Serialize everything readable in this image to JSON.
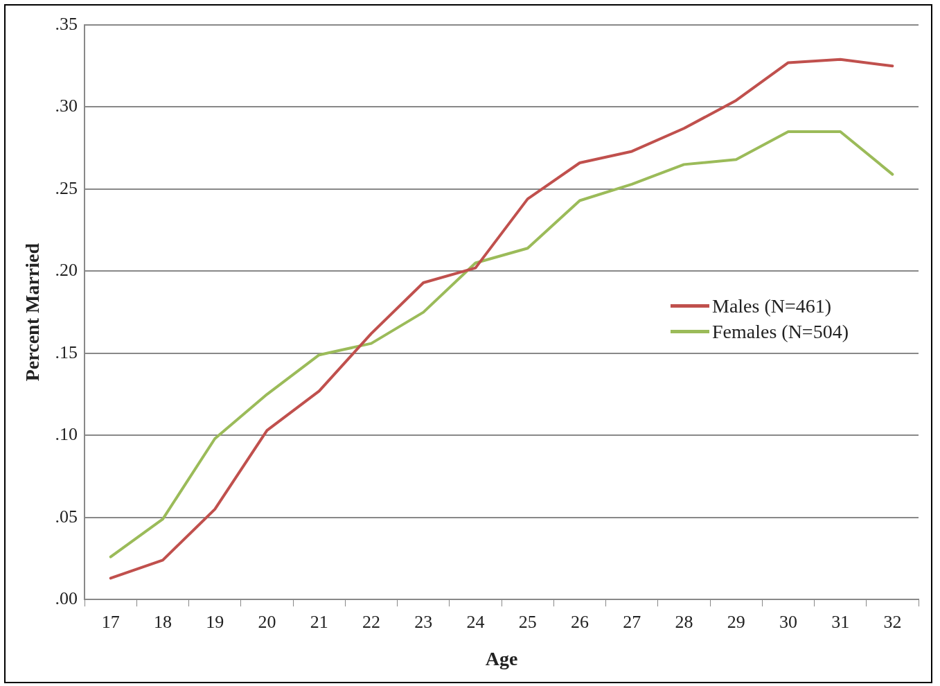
{
  "chart_data": {
    "type": "line",
    "xlabel": "Age",
    "ylabel": "Percent Married",
    "categories": [
      "17",
      "18",
      "19",
      "20",
      "21",
      "22",
      "23",
      "24",
      "25",
      "26",
      "27",
      "28",
      "29",
      "30",
      "31",
      "32"
    ],
    "series": [
      {
        "name": "Males (N=461)",
        "color": "#c0504d",
        "values": [
          0.013,
          0.024,
          0.055,
          0.103,
          0.127,
          0.162,
          0.193,
          0.202,
          0.244,
          0.266,
          0.273,
          0.287,
          0.304,
          0.327,
          0.329,
          0.325
        ]
      },
      {
        "name": "Females (N=504)",
        "color": "#9bbb59",
        "values": [
          0.026,
          0.049,
          0.098,
          0.125,
          0.149,
          0.156,
          0.175,
          0.205,
          0.214,
          0.243,
          0.253,
          0.265,
          0.268,
          0.285,
          0.285,
          0.259
        ]
      }
    ],
    "ylim": [
      0,
      0.35
    ],
    "yticks": [
      {
        "value": 0,
        "label": ".00"
      },
      {
        "value": 0.05,
        "label": ".05"
      },
      {
        "value": 0.1,
        "label": ".10"
      },
      {
        "value": 0.15,
        "label": ".15"
      },
      {
        "value": 0.2,
        "label": ".20"
      },
      {
        "value": 0.25,
        "label": ".25"
      },
      {
        "value": 0.3,
        "label": ".30"
      },
      {
        "value": 0.35,
        "label": ".35"
      }
    ],
    "grid": "y",
    "legend": "right",
    "marker": "none",
    "line_style": "solid"
  }
}
